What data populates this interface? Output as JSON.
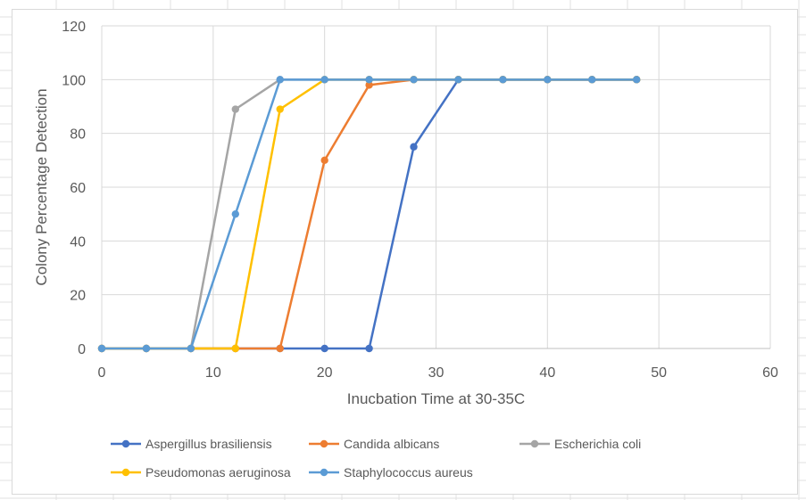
{
  "chart_data": {
    "type": "line",
    "title": "",
    "xlabel": "Inucbation Time at 30-35C",
    "ylabel": "Colony Percentage Detection",
    "xlim": [
      0,
      60
    ],
    "ylim": [
      0,
      120
    ],
    "x_ticks": [
      0,
      10,
      20,
      30,
      40,
      50,
      60
    ],
    "y_ticks": [
      0,
      20,
      40,
      60,
      80,
      100,
      120
    ],
    "grid": true,
    "legend_position": "bottom",
    "series": [
      {
        "name": "Aspergillus brasiliensis",
        "color": "#4472C4",
        "points": [
          [
            0,
            0
          ],
          [
            4,
            0
          ],
          [
            8,
            0
          ],
          [
            12,
            0
          ],
          [
            16,
            0
          ],
          [
            20,
            0
          ],
          [
            24,
            0
          ],
          [
            28,
            75
          ],
          [
            32,
            100
          ],
          [
            36,
            100
          ],
          [
            40,
            100
          ],
          [
            44,
            100
          ],
          [
            48,
            100
          ]
        ]
      },
      {
        "name": "Candida albicans",
        "color": "#ED7D31",
        "points": [
          [
            0,
            0
          ],
          [
            4,
            0
          ],
          [
            8,
            0
          ],
          [
            12,
            0
          ],
          [
            16,
            0
          ],
          [
            20,
            70
          ],
          [
            24,
            98
          ],
          [
            28,
            100
          ],
          [
            32,
            100
          ],
          [
            36,
            100
          ],
          [
            40,
            100
          ],
          [
            44,
            100
          ],
          [
            48,
            100
          ]
        ]
      },
      {
        "name": "Escherichia coli",
        "color": "#A5A5A5",
        "points": [
          [
            0,
            0
          ],
          [
            4,
            0
          ],
          [
            8,
            0
          ],
          [
            12,
            89
          ],
          [
            16,
            100
          ],
          [
            20,
            100
          ],
          [
            24,
            100
          ],
          [
            28,
            100
          ],
          [
            32,
            100
          ],
          [
            36,
            100
          ],
          [
            40,
            100
          ],
          [
            44,
            100
          ],
          [
            48,
            100
          ]
        ]
      },
      {
        "name": "Pseudomonas aeruginosa",
        "color": "#FFC000",
        "points": [
          [
            0,
            0
          ],
          [
            4,
            0
          ],
          [
            8,
            0
          ],
          [
            12,
            0
          ],
          [
            16,
            89
          ],
          [
            20,
            100
          ],
          [
            24,
            100
          ],
          [
            28,
            100
          ],
          [
            32,
            100
          ],
          [
            36,
            100
          ],
          [
            40,
            100
          ],
          [
            44,
            100
          ],
          [
            48,
            100
          ]
        ]
      },
      {
        "name": "Staphylococcus aureus",
        "color": "#5B9BD5",
        "points": [
          [
            0,
            0
          ],
          [
            4,
            0
          ],
          [
            8,
            0
          ],
          [
            12,
            50
          ],
          [
            16,
            100
          ],
          [
            20,
            100
          ],
          [
            24,
            100
          ],
          [
            28,
            100
          ],
          [
            32,
            100
          ],
          [
            36,
            100
          ],
          [
            40,
            100
          ],
          [
            44,
            100
          ],
          [
            48,
            100
          ]
        ]
      }
    ]
  }
}
